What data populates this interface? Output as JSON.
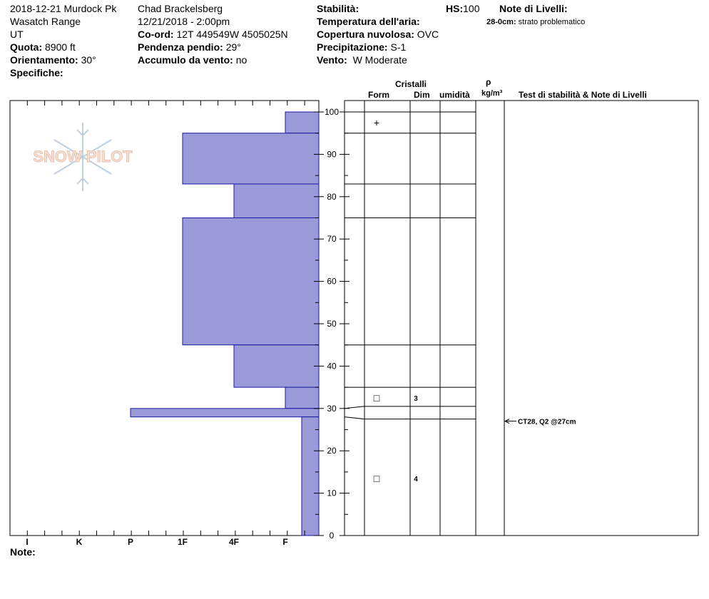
{
  "header": {
    "location": "2018-12-21 Murdock Pk",
    "range": "Wasatch Range",
    "state": "UT",
    "elevation_label": "Quota:",
    "elevation": "8900 ft",
    "aspect_label": "Orientamento:",
    "aspect": "30°",
    "specifics_label": "Specifiche:",
    "observer": "Chad Brackelsberg",
    "datetime": "12/21/2018 - 2:00pm",
    "coord_label": "Co-ord:",
    "coord": "12T 449549W 4505025N",
    "slope_label": "Pendenza pendio:",
    "slope": "29°",
    "wind_loading_label": "Accumulo da vento:",
    "wind_loading": "no",
    "stability_label": "Stabilità:",
    "air_temp_label": "Temperatura dell'aria:",
    "cloud_label": "Copertura nuvolosa:",
    "cloud": "OVC",
    "precip_label": "Precipitazione:",
    "precip": "S-1",
    "wind_label": "Vento:",
    "wind": "W Moderate",
    "hs_label": "HS:",
    "hs": "100",
    "layer_notes_label": "Note di Livelli:",
    "layer_note_depth": "28-0cm:",
    "layer_note_text": "strato problematico"
  },
  "table_headers": {
    "crystals": "Cristalli",
    "form": "Form",
    "size": "Dim",
    "moisture": "umidità",
    "rho": "ρ",
    "density_unit": "kg/m³",
    "stability_notes": "Test di stabilità & Note di Livelli"
  },
  "footer": {
    "notes_label": "Note:"
  },
  "logo_text": "SNOW PILOT",
  "chart_data": {
    "type": "bar",
    "orientation": "horizontal",
    "y_axis": {
      "range": [
        0,
        100
      ],
      "ticks": [
        0,
        10,
        20,
        30,
        40,
        50,
        60,
        70,
        80,
        90,
        100
      ],
      "unit": "cm"
    },
    "x_axis": {
      "categories": [
        "I",
        "K",
        "P",
        "1F",
        "4F",
        "F"
      ]
    },
    "hardness_layers": [
      {
        "top": 100,
        "bottom": 95,
        "hardness": "F"
      },
      {
        "top": 95,
        "bottom": 83,
        "hardness": "1F"
      },
      {
        "top": 83,
        "bottom": 75,
        "hardness": "4F"
      },
      {
        "top": 75,
        "bottom": 45,
        "hardness": "1F"
      },
      {
        "top": 45,
        "bottom": 35,
        "hardness": "4F"
      },
      {
        "top": 35,
        "bottom": 30,
        "hardness": "F"
      },
      {
        "top": 30,
        "bottom": 28,
        "hardness": "P"
      },
      {
        "top": 28,
        "bottom": 0,
        "hardness": "F-"
      }
    ],
    "layer_boundaries": [
      100,
      95,
      83,
      75,
      45,
      35,
      30.5,
      27.5
    ],
    "crystal_rows": [
      {
        "depth": 97.5,
        "form_symbol": "+",
        "size": ""
      },
      {
        "depth": 32.5,
        "form_symbol": "□",
        "size": "3"
      },
      {
        "depth": 13.5,
        "form_symbol": "□",
        "size": "4"
      }
    ],
    "stability_tests": [
      {
        "depth": 27,
        "text": "CT28, Q2 @27cm"
      }
    ],
    "colors": {
      "bar_fill": "#9a9ad8",
      "bar_stroke": "#1a1aa0"
    }
  }
}
